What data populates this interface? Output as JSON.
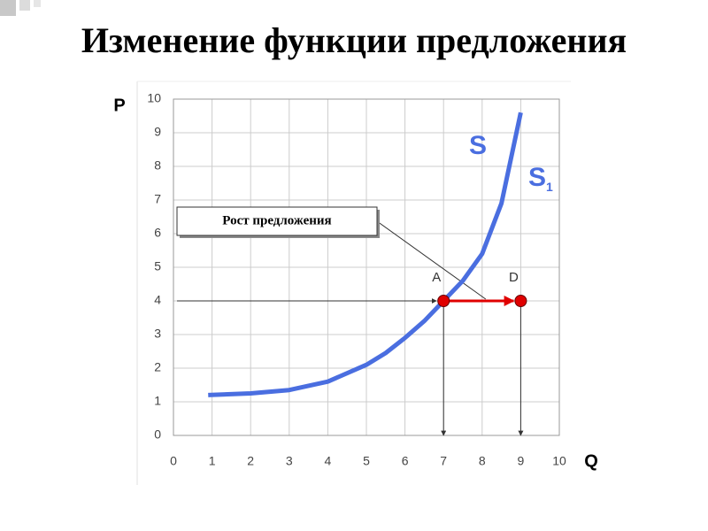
{
  "chart_data": {
    "type": "line",
    "title": "Изменение функции предложения",
    "x_label": "Q",
    "y_label": "P",
    "xlim": [
      0,
      10
    ],
    "ylim": [
      0,
      10
    ],
    "xticks": [
      0,
      1,
      2,
      3,
      4,
      5,
      6,
      7,
      8,
      9,
      10
    ],
    "yticks": [
      0,
      1,
      2,
      3,
      4,
      5,
      6,
      7,
      8,
      9,
      10
    ],
    "grid": true,
    "series": [
      {
        "name": "S",
        "color": "#4a6ee0",
        "x": [
          0.9,
          2,
          3,
          4,
          5,
          5.5,
          6,
          6.5,
          7,
          7.5,
          8,
          8.5,
          9
        ],
        "values": [
          1.2,
          1.25,
          1.35,
          1.6,
          2.1,
          2.45,
          2.9,
          3.4,
          4.0,
          4.6,
          5.4,
          6.9,
          9.6
        ]
      }
    ],
    "shift_label": {
      "text": "S",
      "subscript": "1"
    },
    "points": [
      {
        "label": "A",
        "x": 7,
        "y": 4,
        "color": "#e00000"
      },
      {
        "label": "D",
        "x": 9,
        "y": 4,
        "color": "#e00000"
      }
    ],
    "annotation": "Рост предложения"
  }
}
